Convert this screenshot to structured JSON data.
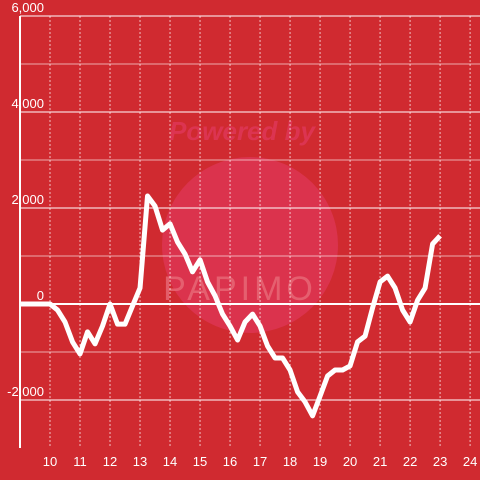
{
  "chart_data": {
    "type": "line",
    "watermark": [
      "Powered by",
      "PAPIMO"
    ],
    "x": [
      9,
      10,
      10.25,
      10.5,
      10.75,
      11,
      11.25,
      11.5,
      11.75,
      12,
      12.25,
      12.5,
      12.75,
      13,
      13.25,
      13.5,
      13.75,
      14,
      14.25,
      14.5,
      14.75,
      15,
      15.25,
      15.5,
      15.75,
      16,
      16.25,
      16.5,
      16.75,
      17,
      17.25,
      17.5,
      17.75,
      18,
      18.25,
      18.5,
      18.75,
      19,
      19.25,
      19.5,
      19.75,
      20,
      20.25,
      20.5,
      20.75,
      21,
      21.25,
      21.5,
      21.75,
      22,
      22.25,
      22.5,
      22.75,
      23
    ],
    "series": [
      {
        "color": "#ffffff",
        "values": [
          0,
          0,
          -125,
          -375,
          -790,
          -1040,
          -580,
          -830,
          -460,
          0,
          -420,
          -420,
          -40,
          333,
          2250,
          2040,
          1540,
          1670,
          1290,
          1040,
          670,
          920,
          460,
          170,
          -210,
          -460,
          -750,
          -375,
          -210,
          -460,
          -875,
          -1125,
          -1125,
          -1375,
          -1830,
          -2040,
          -2330,
          -1920,
          -1500,
          -1375,
          -1375,
          -1290,
          -790,
          -670,
          -80,
          460,
          580,
          333,
          -125,
          -375,
          80,
          333,
          1250,
          1420
        ]
      }
    ],
    "xlim": [
      9,
      24.33
    ],
    "xticks": [
      10,
      11,
      12,
      13,
      14,
      15,
      16,
      17,
      18,
      19,
      20,
      21,
      22,
      23,
      24
    ],
    "ylim": [
      -3000,
      6000
    ],
    "yticks": [
      {
        "value": -2000,
        "label": "-2,000"
      },
      0,
      {
        "value": 2000,
        "label": "2,000"
      },
      {
        "value": 4000,
        "label": "4,000"
      },
      {
        "value": 6000,
        "label": "6,000"
      }
    ],
    "minor_yticks": [
      -1000,
      1000,
      3000,
      5000
    ],
    "grid": true
  }
}
